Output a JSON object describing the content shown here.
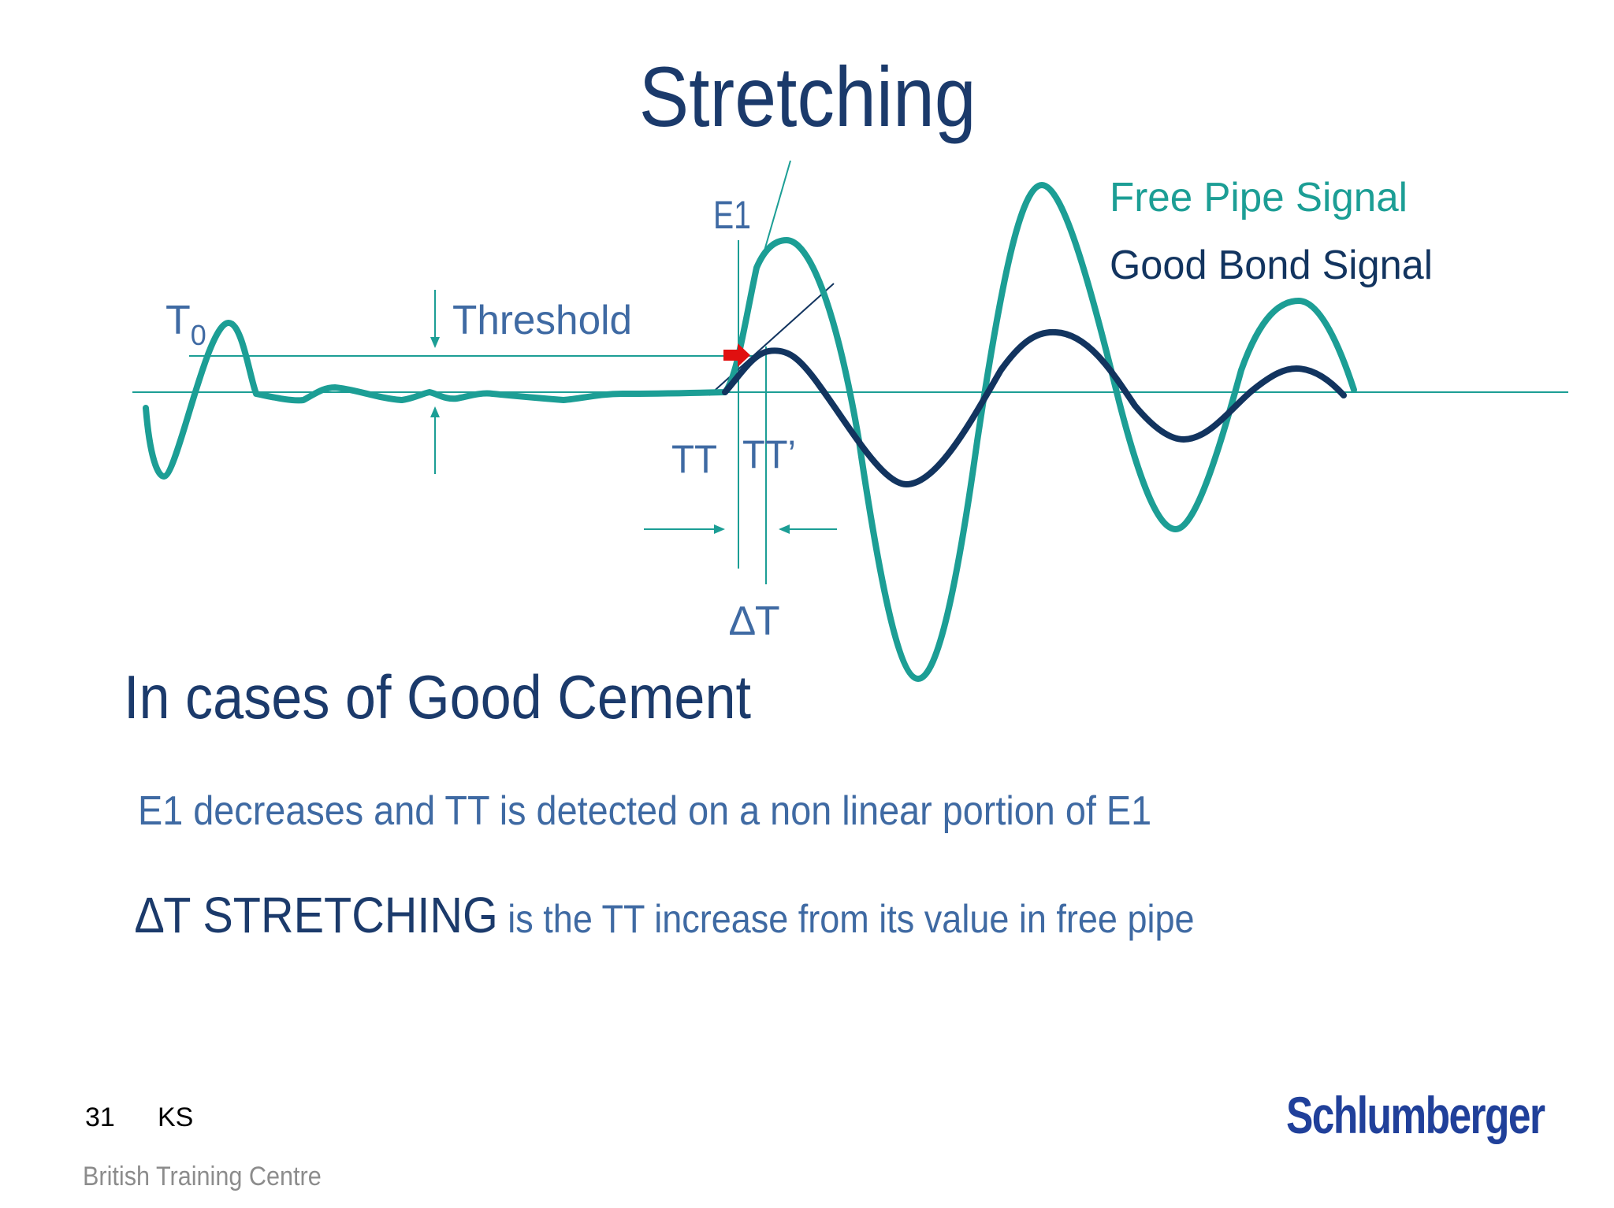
{
  "slide": {
    "title": "Stretching",
    "subheading": "In cases of Good Cement",
    "point1": "E1 decreases and TT is detected on a non linear portion of E1",
    "point2_emphasis": "∆T STRETCHING",
    "point2_rest": " is the TT increase from its value in free pipe",
    "page_number": "31",
    "author": "KS",
    "centre": "British Training Centre",
    "logo": "Schlumberger"
  },
  "diagram": {
    "legend": {
      "free_pipe": "Free Pipe Signal",
      "good_bond": "Good Bond Signal"
    },
    "labels": {
      "t0_main": "T",
      "t0_sub": "0",
      "threshold": "Threshold",
      "e1": "E1",
      "tt": "TT",
      "tt_prime": "TT’",
      "delta_t": "∆T"
    },
    "colors": {
      "free_pipe": "#1c9e95",
      "good_bond": "#12345f",
      "label": "#3f6aa3",
      "marker": "#e01010"
    }
  }
}
